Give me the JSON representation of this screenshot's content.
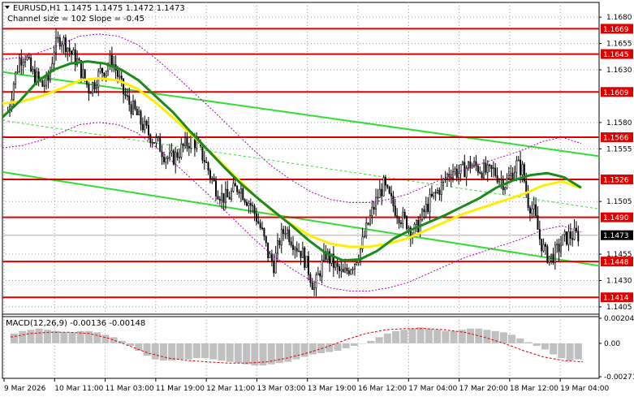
{
  "chart_data": {
    "type": "candlestick",
    "symbol_line": "EURUSD,H1  1.1475 1.1475 1.1472 1.1473",
    "channel_line": "Channel size = 102 Slope = -0.45",
    "macd_label": "MACD(12,26,9) -0.00136 -0.00148",
    "x_ticks": [
      "9 Mar 2026",
      "10 Mar 11:00",
      "11 Mar 03:00",
      "11 Mar 19:00",
      "12 Mar 11:00",
      "13 Mar 03:00",
      "13 Mar 19:00",
      "16 Mar 12:00",
      "17 Mar 04:00",
      "17 Mar 20:00",
      "18 Mar 12:00",
      "19 Mar 04:00"
    ],
    "y_ticks": [
      "1.1680",
      "1.1655",
      "1.1630",
      "1.1580",
      "1.1555",
      "1.1505",
      "1.1455",
      "1.1430",
      "1.1405"
    ],
    "y_range": [
      1.1398,
      1.1694
    ],
    "macd_ticks": [
      "0.00204",
      "0.00",
      "-0.00271"
    ],
    "macd_range": [
      -0.00271,
      0.00204
    ],
    "levels": [
      "1.1669",
      "1.1645",
      "1.1609",
      "1.1566",
      "1.1526",
      "1.1490",
      "1.1448",
      "1.1414"
    ],
    "current_price": "1.1473",
    "level_color": "#e00000",
    "current_color": "#000000",
    "close_path": [
      1.159,
      1.1618,
      1.164,
      1.1645,
      1.1628,
      1.1622,
      1.1615,
      1.162,
      1.165,
      1.166,
      1.1655,
      1.1645,
      1.1638,
      1.1625,
      1.1612,
      1.1618,
      1.1628,
      1.1632,
      1.164,
      1.1625,
      1.1608,
      1.1598,
      1.159,
      1.158,
      1.1572,
      1.1565,
      1.156,
      1.155,
      1.1545,
      1.1548,
      1.1555,
      1.156,
      1.1565,
      1.1555,
      1.1545,
      1.153,
      1.1518,
      1.151,
      1.1508,
      1.1515,
      1.152,
      1.151,
      1.1502,
      1.149,
      1.1475,
      1.1455,
      1.1445,
      1.1468,
      1.148,
      1.147,
      1.1462,
      1.1455,
      1.144,
      1.1422,
      1.144,
      1.1455,
      1.1448,
      1.144,
      1.1435,
      1.1442,
      1.1448,
      1.146,
      1.1478,
      1.1495,
      1.151,
      1.152,
      1.1508,
      1.1498,
      1.149,
      1.1485,
      1.1475,
      1.1482,
      1.1495,
      1.1505,
      1.1512,
      1.152,
      1.153,
      1.1535,
      1.1532,
      1.1536,
      1.154,
      1.1538,
      1.1535,
      1.1532,
      1.1534,
      1.1528,
      1.1522,
      1.153,
      1.154,
      1.1535,
      1.1505,
      1.1495,
      1.147,
      1.1455,
      1.1452,
      1.1458,
      1.1468,
      1.1472,
      1.1473
    ],
    "sma_green_path": [
      1.1585,
      1.16,
      1.1618,
      1.163,
      1.1636,
      1.1638,
      1.1636,
      1.163,
      1.162,
      1.1605,
      1.159,
      1.1572,
      1.1555,
      1.1538,
      1.1522,
      1.1508,
      1.1495,
      1.1482,
      1.1468,
      1.1456,
      1.1449,
      1.145,
      1.1458,
      1.147,
      1.1478,
      1.1485,
      1.1492,
      1.15,
      1.1508,
      1.1518,
      1.1525,
      1.153,
      1.1532,
      1.1528,
      1.1518
    ],
    "sma_yellow_path": [
      1.1598,
      1.16,
      1.1605,
      1.1612,
      1.162,
      1.1622,
      1.162,
      1.1612,
      1.1598,
      1.1582,
      1.1565,
      1.1548,
      1.153,
      1.1512,
      1.1496,
      1.1483,
      1.1472,
      1.1465,
      1.1462,
      1.1462,
      1.1465,
      1.147,
      1.1478,
      1.1486,
      1.1494,
      1.15,
      1.1506,
      1.1512,
      1.152,
      1.1524,
      1.1518
    ],
    "macd_hist": [
      0.0008,
      0.001,
      0.0011,
      0.0012,
      0.0011,
      0.001,
      0.0009,
      0.0009,
      0.001,
      0.001,
      0.0009,
      0.0007,
      0.0005,
      0.0002,
      -0.0002,
      -0.0006,
      -0.001,
      -0.0013,
      -0.0014,
      -0.0014,
      -0.0013,
      -0.0013,
      -0.0012,
      -0.0012,
      -0.0013,
      -0.0014,
      -0.0015,
      -0.0016,
      -0.0017,
      -0.0018,
      -0.0018,
      -0.0017,
      -0.0016,
      -0.0015,
      -0.0013,
      -0.0011,
      -0.0009,
      -0.0008,
      -0.0007,
      -0.0006,
      -0.0004,
      -0.0002,
      0.0,
      0.0002,
      0.0005,
      0.0008,
      0.001,
      0.0011,
      0.0012,
      0.0013,
      0.0012,
      0.0011,
      0.001,
      0.001,
      0.0011,
      0.0012,
      0.0012,
      0.0011,
      0.001,
      0.0009,
      0.0007,
      0.0004,
      0.0001,
      -0.0002,
      -0.0005,
      -0.0009,
      -0.0012,
      -0.0014,
      -0.0013
    ],
    "macd_signal": [
      0.0005,
      0.0008,
      0.0009,
      0.0009,
      0.0008,
      0.0004,
      -0.0002,
      -0.0008,
      -0.0012,
      -0.0014,
      -0.0015,
      -0.0016,
      -0.0016,
      -0.0015,
      -0.0012,
      -0.0008,
      -0.0003,
      0.0003,
      0.0008,
      0.0011,
      0.0012,
      0.0012,
      0.0011,
      0.0009,
      0.0005,
      0.0,
      -0.0006,
      -0.0011,
      -0.0014,
      -0.0015
    ]
  }
}
